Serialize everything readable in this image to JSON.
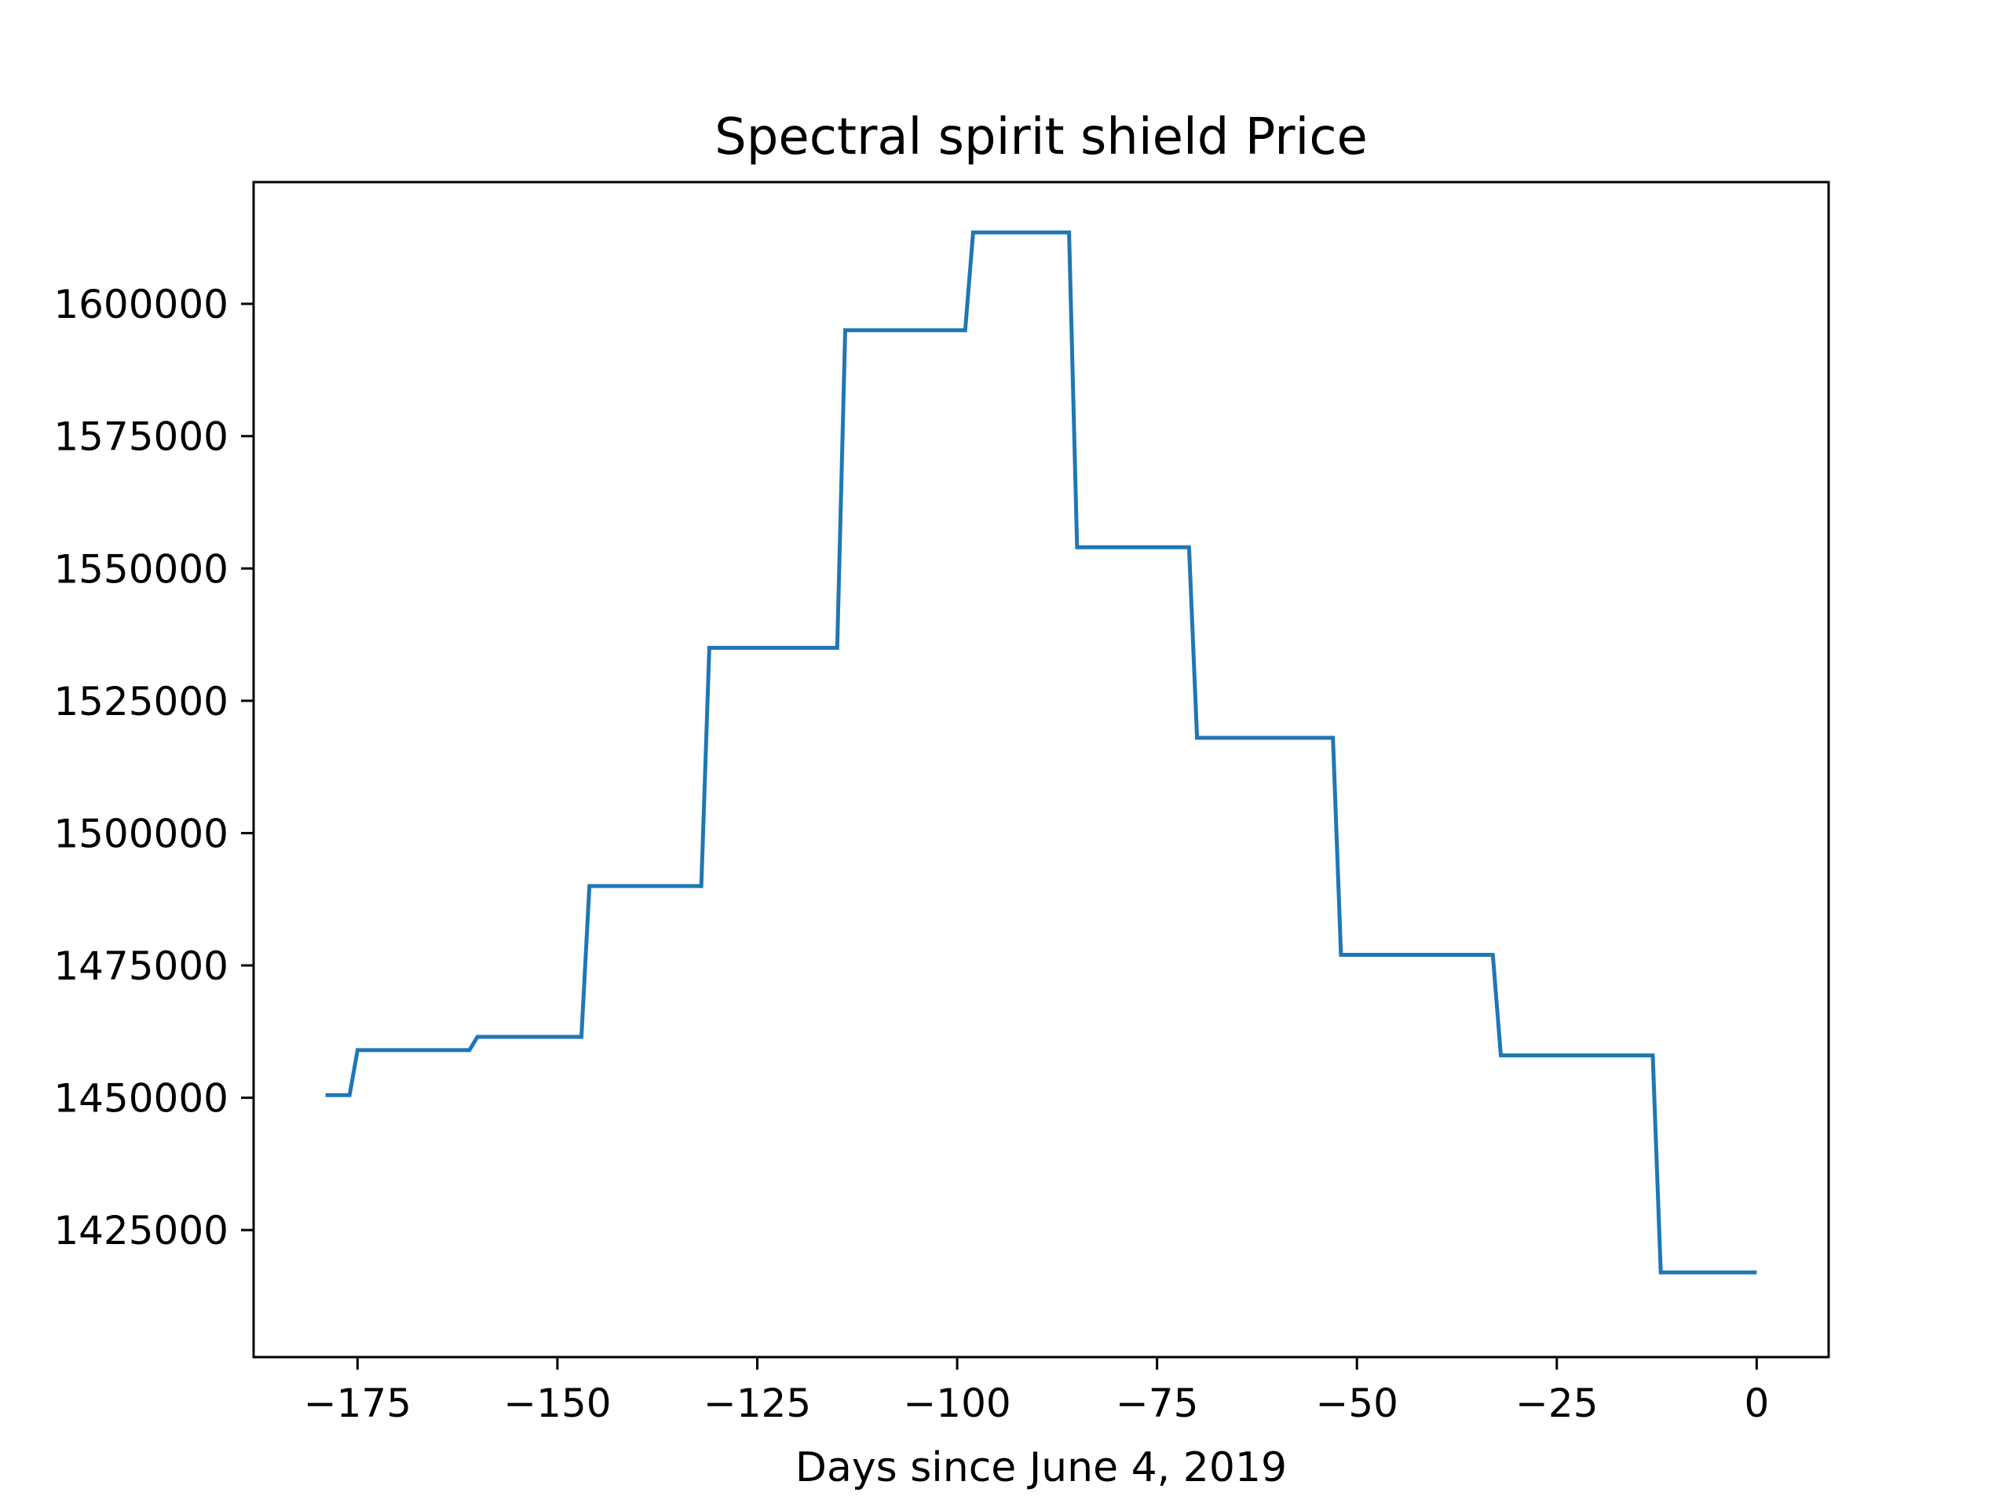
{
  "chart_data": {
    "type": "line",
    "title": "Spectral spirit shield Price",
    "xlabel": "Days since June 4, 2019",
    "ylabel": "",
    "xlim": [
      -188,
      9
    ],
    "ylim": [
      1401000,
      1623000
    ],
    "xticks": [
      -175,
      -150,
      -125,
      -100,
      -75,
      -50,
      -25,
      0
    ],
    "xtick_labels": [
      "−175",
      "−150",
      "−125",
      "−100",
      "−75",
      "−50",
      "−25",
      "0"
    ],
    "yticks": [
      1425000,
      1450000,
      1475000,
      1500000,
      1525000,
      1550000,
      1575000,
      1600000
    ],
    "ytick_labels": [
      "1425000",
      "1450000",
      "1475000",
      "1500000",
      "1525000",
      "1550000",
      "1575000",
      "1600000"
    ],
    "grid": false,
    "series": [
      {
        "color": "#1f77b4",
        "x": [
          -179,
          -176,
          -175,
          -161,
          -160,
          -147,
          -146,
          -132,
          -131,
          -115,
          -114,
          -99,
          -98,
          -86,
          -85,
          -71,
          -70,
          -53,
          -52,
          -33,
          -32,
          -13,
          -12,
          0
        ],
        "y": [
          1450500,
          1450500,
          1459000,
          1459000,
          1461500,
          1461500,
          1490000,
          1490000,
          1535000,
          1535000,
          1595000,
          1595000,
          1613500,
          1613500,
          1554000,
          1554000,
          1518000,
          1518000,
          1477000,
          1477000,
          1458000,
          1458000,
          1417000,
          1417000
        ]
      }
    ]
  }
}
